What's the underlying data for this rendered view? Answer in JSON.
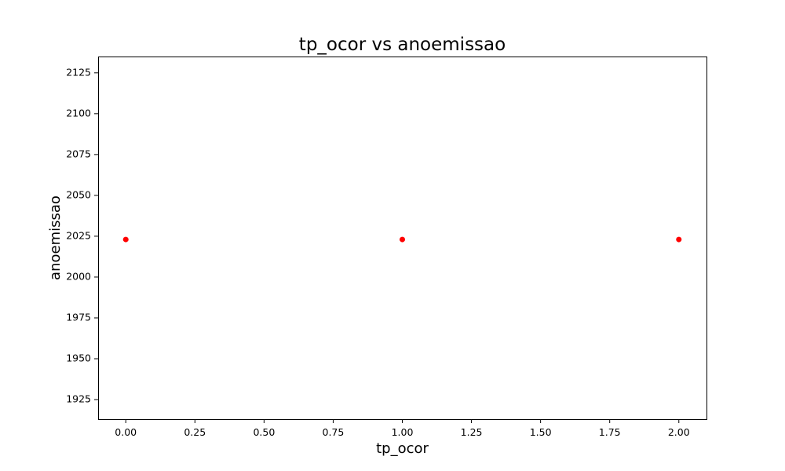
{
  "chart_data": {
    "type": "scatter",
    "title": "tp_ocor vs anoemissao",
    "xlabel": "tp_ocor",
    "ylabel": "anoemissao",
    "xlim": [
      -0.1,
      2.1
    ],
    "ylim": [
      1913,
      2135
    ],
    "x_ticks": [
      "0.00",
      "0.25",
      "0.50",
      "0.75",
      "1.00",
      "1.25",
      "1.50",
      "1.75",
      "2.00"
    ],
    "y_ticks": [
      "1925",
      "1950",
      "1975",
      "2000",
      "2025",
      "2050",
      "2075",
      "2100",
      "2125"
    ],
    "grid": false,
    "legend": "none",
    "point_color": "#ff0000",
    "series": [
      {
        "points": [
          {
            "x": 0,
            "y": 2023
          },
          {
            "x": 1,
            "y": 2023
          },
          {
            "x": 2,
            "y": 2023
          }
        ]
      }
    ]
  }
}
